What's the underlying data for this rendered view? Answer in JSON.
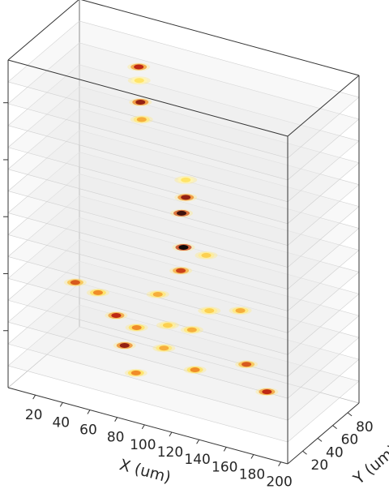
{
  "chart_data": {
    "type": "scatter",
    "projection": "3d",
    "title": "",
    "xlabel": "X (um)",
    "ylabel": "Y (um)",
    "zlabel": "",
    "x_ticks": [
      "20",
      "40",
      "60",
      "80",
      "100",
      "120",
      "140",
      "160",
      "180",
      "200"
    ],
    "y_ticks": [
      "20",
      "40",
      "60",
      "80"
    ],
    "z_ticks": [
      "",
      "",
      "",
      "",
      ""
    ],
    "xlim": [
      0,
      205
    ],
    "ylim": [
      0,
      95
    ],
    "zlim": [
      0,
      15
    ],
    "grid": false,
    "colormap": "hot",
    "plane_color": "#e8e8e8",
    "slice_levels": [
      1,
      2,
      3,
      4,
      5,
      6,
      7,
      8,
      9,
      10,
      11,
      12,
      13,
      14
    ],
    "hotspots": [
      {
        "x": 60,
        "y": 65,
        "z": 13.8,
        "intensity": 0.8
      },
      {
        "x": 62,
        "y": 62,
        "z": 13.3,
        "intensity": 0.3
      },
      {
        "x": 64,
        "y": 60,
        "z": 12.4,
        "intensity": 0.85
      },
      {
        "x": 66,
        "y": 58,
        "z": 11.7,
        "intensity": 0.5
      },
      {
        "x": 100,
        "y": 55,
        "z": 9.6,
        "intensity": 0.3
      },
      {
        "x": 100,
        "y": 55,
        "z": 8.8,
        "intensity": 0.85
      },
      {
        "x": 98,
        "y": 53,
        "z": 8.1,
        "intensity": 0.95
      },
      {
        "x": 100,
        "y": 52,
        "z": 6.6,
        "intensity": 1.0
      },
      {
        "x": 115,
        "y": 55,
        "z": 6.4,
        "intensity": 0.4
      },
      {
        "x": 98,
        "y": 52,
        "z": 5.5,
        "intensity": 0.75
      },
      {
        "x": 30,
        "y": 35,
        "z": 4.3,
        "intensity": 0.7
      },
      {
        "x": 45,
        "y": 38,
        "z": 4.0,
        "intensity": 0.6
      },
      {
        "x": 85,
        "y": 45,
        "z": 4.4,
        "intensity": 0.5
      },
      {
        "x": 120,
        "y": 50,
        "z": 4.1,
        "intensity": 0.4
      },
      {
        "x": 140,
        "y": 55,
        "z": 4.3,
        "intensity": 0.5
      },
      {
        "x": 60,
        "y": 35,
        "z": 3.3,
        "intensity": 0.8
      },
      {
        "x": 75,
        "y": 35,
        "z": 3.0,
        "intensity": 0.6
      },
      {
        "x": 95,
        "y": 40,
        "z": 3.3,
        "intensity": 0.4
      },
      {
        "x": 110,
        "y": 45,
        "z": 3.2,
        "intensity": 0.5
      },
      {
        "x": 70,
        "y": 28,
        "z": 2.3,
        "intensity": 0.85
      },
      {
        "x": 95,
        "y": 35,
        "z": 2.4,
        "intensity": 0.5
      },
      {
        "x": 150,
        "y": 45,
        "z": 2.3,
        "intensity": 0.7
      },
      {
        "x": 80,
        "y": 25,
        "z": 1.3,
        "intensity": 0.6
      },
      {
        "x": 165,
        "y": 45,
        "z": 1.3,
        "intensity": 0.8
      },
      {
        "x": 115,
        "y": 40,
        "z": 1.6,
        "intensity": 0.6
      }
    ]
  }
}
